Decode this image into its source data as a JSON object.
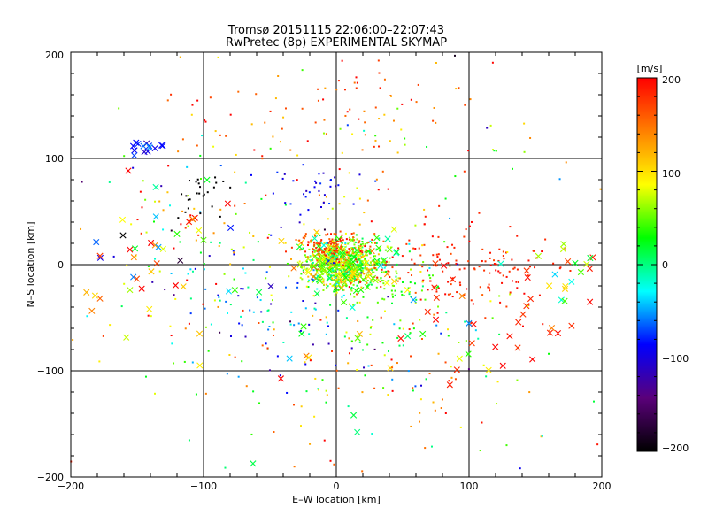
{
  "chart_data": {
    "type": "scatter",
    "title": "Tromsø 20151115 22:06:00–22:07:43",
    "subtitle": "RwPretec (8p) EXPERIMENTAL SKYMAP",
    "xlabel": "E–W location [km]",
    "ylabel": "N–S location [km]",
    "xlim": [
      -200,
      200
    ],
    "ylim": [
      -200,
      200
    ],
    "xticks": [
      "−200",
      "−100",
      "0",
      "100",
      "200"
    ],
    "yticks": [
      "−200",
      "−100",
      "0",
      "100",
      "200"
    ],
    "grid_lines": {
      "x": [
        -100,
        0,
        100
      ],
      "y": [
        -100,
        0,
        100
      ]
    },
    "colorbar": {
      "unit": "[m/s]",
      "range": [
        -200,
        200
      ],
      "ticks": [
        "200",
        "100",
        "0",
        "−100",
        "−200"
      ],
      "colormap": [
        "#000000",
        "#5a007a",
        "#0000ff",
        "#00ffff",
        "#00ff00",
        "#ffff00",
        "#ff8000",
        "#ff0000"
      ]
    },
    "markers": {
      "large": "x",
      "small": "dot"
    },
    "clusters": [
      {
        "x": 5,
        "y": 0,
        "spread": [
          14,
          11
        ],
        "count": 750,
        "size": "small",
        "vmean": 60,
        "vspread": 90
      },
      {
        "x": 5,
        "y": 0,
        "spread": [
          18,
          14
        ],
        "count": 120,
        "size": "large",
        "vmean": 60,
        "vspread": 90
      },
      {
        "x": -5,
        "y": 18,
        "spread": [
          16,
          6
        ],
        "count": 120,
        "size": "small",
        "vmean": 170,
        "vspread": 30
      },
      {
        "x": 90,
        "y": -5,
        "spread": [
          40,
          20
        ],
        "count": 160,
        "size": "small",
        "vmean": 185,
        "vspread": 20
      },
      {
        "x": 110,
        "y": -40,
        "spread": [
          50,
          30
        ],
        "count": 30,
        "size": "large",
        "vmean": 185,
        "vspread": 20
      },
      {
        "x": 45,
        "y": -25,
        "spread": [
          20,
          20
        ],
        "count": 80,
        "size": "small",
        "vmean": 40,
        "vspread": 40
      },
      {
        "x": -20,
        "y": 80,
        "spread": [
          70,
          50
        ],
        "count": 90,
        "size": "small",
        "vmean": 120,
        "vspread": 120
      },
      {
        "x": -10,
        "y": 160,
        "spread": [
          70,
          25
        ],
        "count": 60,
        "size": "small",
        "vmean": 160,
        "vspread": 60
      },
      {
        "x": -110,
        "y": 20,
        "spread": [
          40,
          40
        ],
        "count": 60,
        "size": "small",
        "vmean": 100,
        "vspread": 180
      },
      {
        "x": -130,
        "y": 0,
        "spread": [
          35,
          40
        ],
        "count": 45,
        "size": "large",
        "vmean": 50,
        "vspread": 220
      },
      {
        "x": -100,
        "y": 65,
        "spread": [
          12,
          10
        ],
        "count": 25,
        "size": "small",
        "vmean": -200,
        "vspread": 10
      },
      {
        "x": -140,
        "y": 110,
        "spread": [
          8,
          4
        ],
        "count": 14,
        "size": "large",
        "vmean": -80,
        "vspread": 40
      },
      {
        "x": 0,
        "y": -70,
        "spread": [
          80,
          40
        ],
        "count": 110,
        "size": "small",
        "vmean": 30,
        "vspread": 160
      },
      {
        "x": 10,
        "y": -60,
        "spread": [
          70,
          40
        ],
        "count": 35,
        "size": "large",
        "vmean": 60,
        "vspread": 200
      },
      {
        "x": -40,
        "y": -50,
        "spread": [
          30,
          30
        ],
        "count": 60,
        "size": "small",
        "vmean": -60,
        "vspread": 80
      },
      {
        "x": -20,
        "y": 70,
        "spread": [
          15,
          15
        ],
        "count": 35,
        "size": "small",
        "vmean": -90,
        "vspread": 30
      },
      {
        "x": 20,
        "y": -130,
        "spread": [
          60,
          30
        ],
        "count": 35,
        "size": "small",
        "vmean": 140,
        "vspread": 80
      },
      {
        "x": 175,
        "y": -15,
        "spread": [
          12,
          15
        ],
        "count": 14,
        "size": "large",
        "vmean": 50,
        "vspread": 80
      },
      {
        "x": 0,
        "y": 0,
        "spread": [
          110,
          90
        ],
        "count": 130,
        "size": "small",
        "vmean": 60,
        "vspread": 200
      }
    ]
  }
}
